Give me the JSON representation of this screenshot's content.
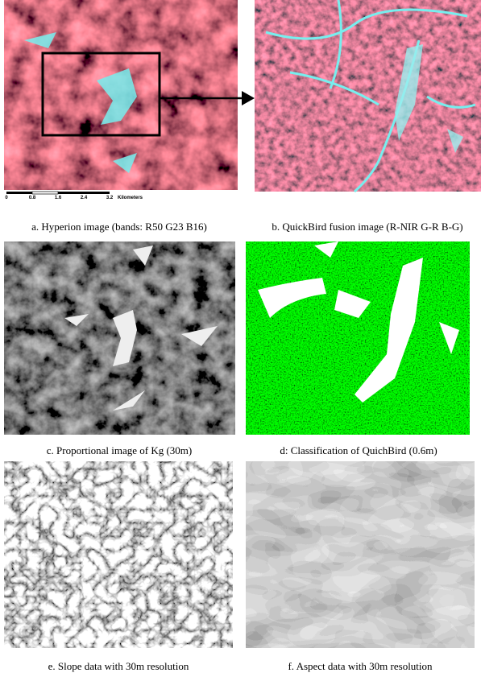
{
  "scale_bar": {
    "labels": [
      "0",
      "0.8",
      "1.6",
      "2.4",
      "3.2"
    ],
    "unit": "Kilometers"
  },
  "panels": [
    {
      "caption": "a. Hyperion image (bands: R50 G23 B16)"
    },
    {
      "caption": "b. QuickBird fusion image (R-NIR G-R B-G)"
    },
    {
      "caption": "c. Proportional image of Kg (30m)"
    },
    {
      "caption": "d: Classification of QuichBird (0.6m)"
    },
    {
      "caption": "e. Slope data with 30m resolution"
    },
    {
      "caption": "f. Aspect data with 30m resolution"
    }
  ]
}
